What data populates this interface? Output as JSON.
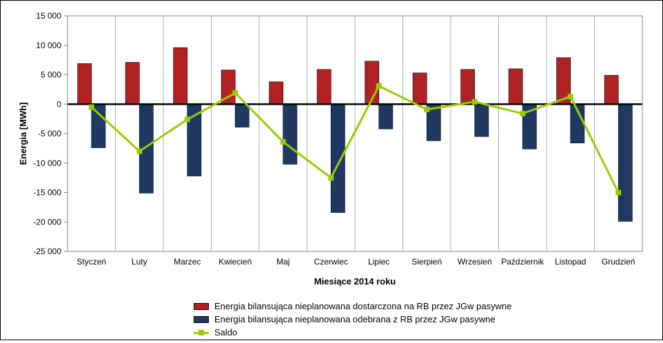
{
  "chart_data": {
    "type": "bar",
    "categories": [
      "Styczeń",
      "Luty",
      "Marzec",
      "Kwiecień",
      "Maj",
      "Czerwiec",
      "Lipiec",
      "Sierpień",
      "Wrzesień",
      "Październik",
      "Listopad",
      "Grudzień"
    ],
    "series": [
      {
        "name": "Energia bilansująca nieplanowana dostarczona na RB przez JGw pasywne",
        "type": "bar",
        "color": "#b22222",
        "values": [
          6900,
          7100,
          9600,
          5800,
          3800,
          5900,
          7300,
          5300,
          5900,
          6000,
          7900,
          4900
        ]
      },
      {
        "name": "Energia bilansująca nieplanowana odebrana z RB przez JGw pasywne",
        "type": "bar",
        "color": "#1f3864",
        "values": [
          -7400,
          -15100,
          -12200,
          -3900,
          -10200,
          -18400,
          -4200,
          -6200,
          -5500,
          -7600,
          -6600,
          -19900
        ]
      },
      {
        "name": "Saldo",
        "type": "line",
        "color": "#99cc00",
        "values": [
          -500,
          -8000,
          -2600,
          1900,
          -6400,
          -12500,
          3100,
          -900,
          400,
          -1600,
          1300,
          -15000
        ]
      }
    ],
    "ylim": [
      -25000,
      15000
    ],
    "yticks": [
      -25000,
      -20000,
      -15000,
      -10000,
      -5000,
      0,
      5000,
      10000,
      15000
    ],
    "ytick_labels": [
      "-25 000",
      "-20 000",
      "-15 000",
      "-10 000",
      "-5 000",
      "0",
      "5 000",
      "10 000",
      "15 000"
    ],
    "xlabel": "Miesiące 2014 roku",
    "ylabel": "Energia [MWh]",
    "grid": "vertical",
    "legend_position": "bottom"
  }
}
